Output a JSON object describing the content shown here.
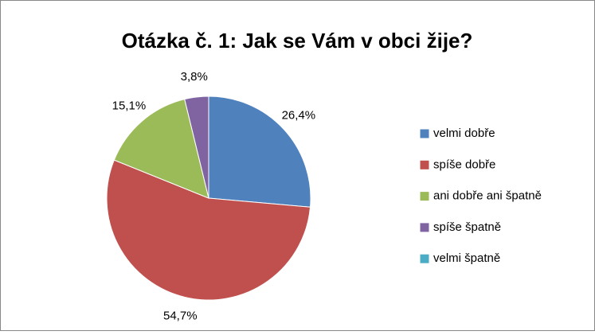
{
  "chart_data": {
    "type": "pie",
    "title": "Otázka č. 1: Jak se Vám v obci žije?",
    "categories": [
      "velmi dobře",
      "spíše dobře",
      "ani dobře ani špatně",
      "spíše špatně",
      "velmi špatně"
    ],
    "values": [
      26.4,
      54.7,
      15.1,
      3.8,
      0
    ],
    "value_labels": [
      "26,4%",
      "54,7%",
      "15,1%",
      "3,8%",
      null
    ],
    "colors": [
      "#4f81bd",
      "#c0504d",
      "#9bbb59",
      "#8064a2",
      "#4bacc6"
    ],
    "legend": "right"
  }
}
